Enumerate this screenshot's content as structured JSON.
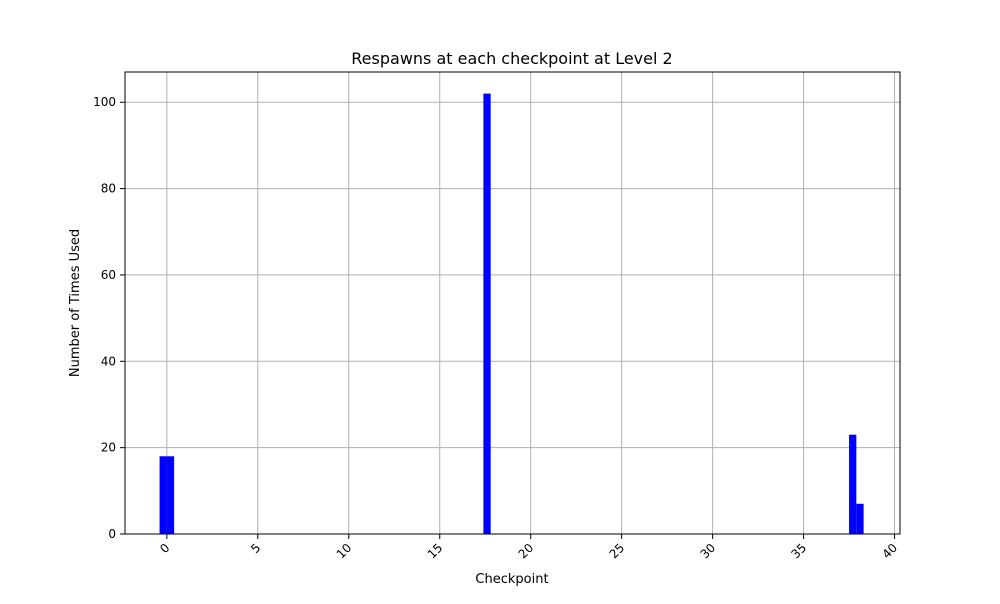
{
  "chart_data": {
    "type": "bar",
    "title": "Respawns at each checkpoint at Level 2",
    "xlabel": "Checkpoint",
    "ylabel": "Number of Times Used",
    "xlim": [
      -2.3,
      40.3
    ],
    "ylim": [
      0,
      107
    ],
    "xticks": [
      0,
      5,
      10,
      15,
      20,
      25,
      30,
      35,
      40
    ],
    "yticks": [
      0,
      20,
      40,
      60,
      80,
      100
    ],
    "grid": true,
    "bar_color": "#0000ff",
    "bars": [
      {
        "x": -0.2,
        "value": 18
      },
      {
        "x": 0.2,
        "value": 18
      },
      {
        "x": 17.6,
        "value": 102
      },
      {
        "x": 37.7,
        "value": 23
      },
      {
        "x": 38.1,
        "value": 7
      }
    ]
  }
}
